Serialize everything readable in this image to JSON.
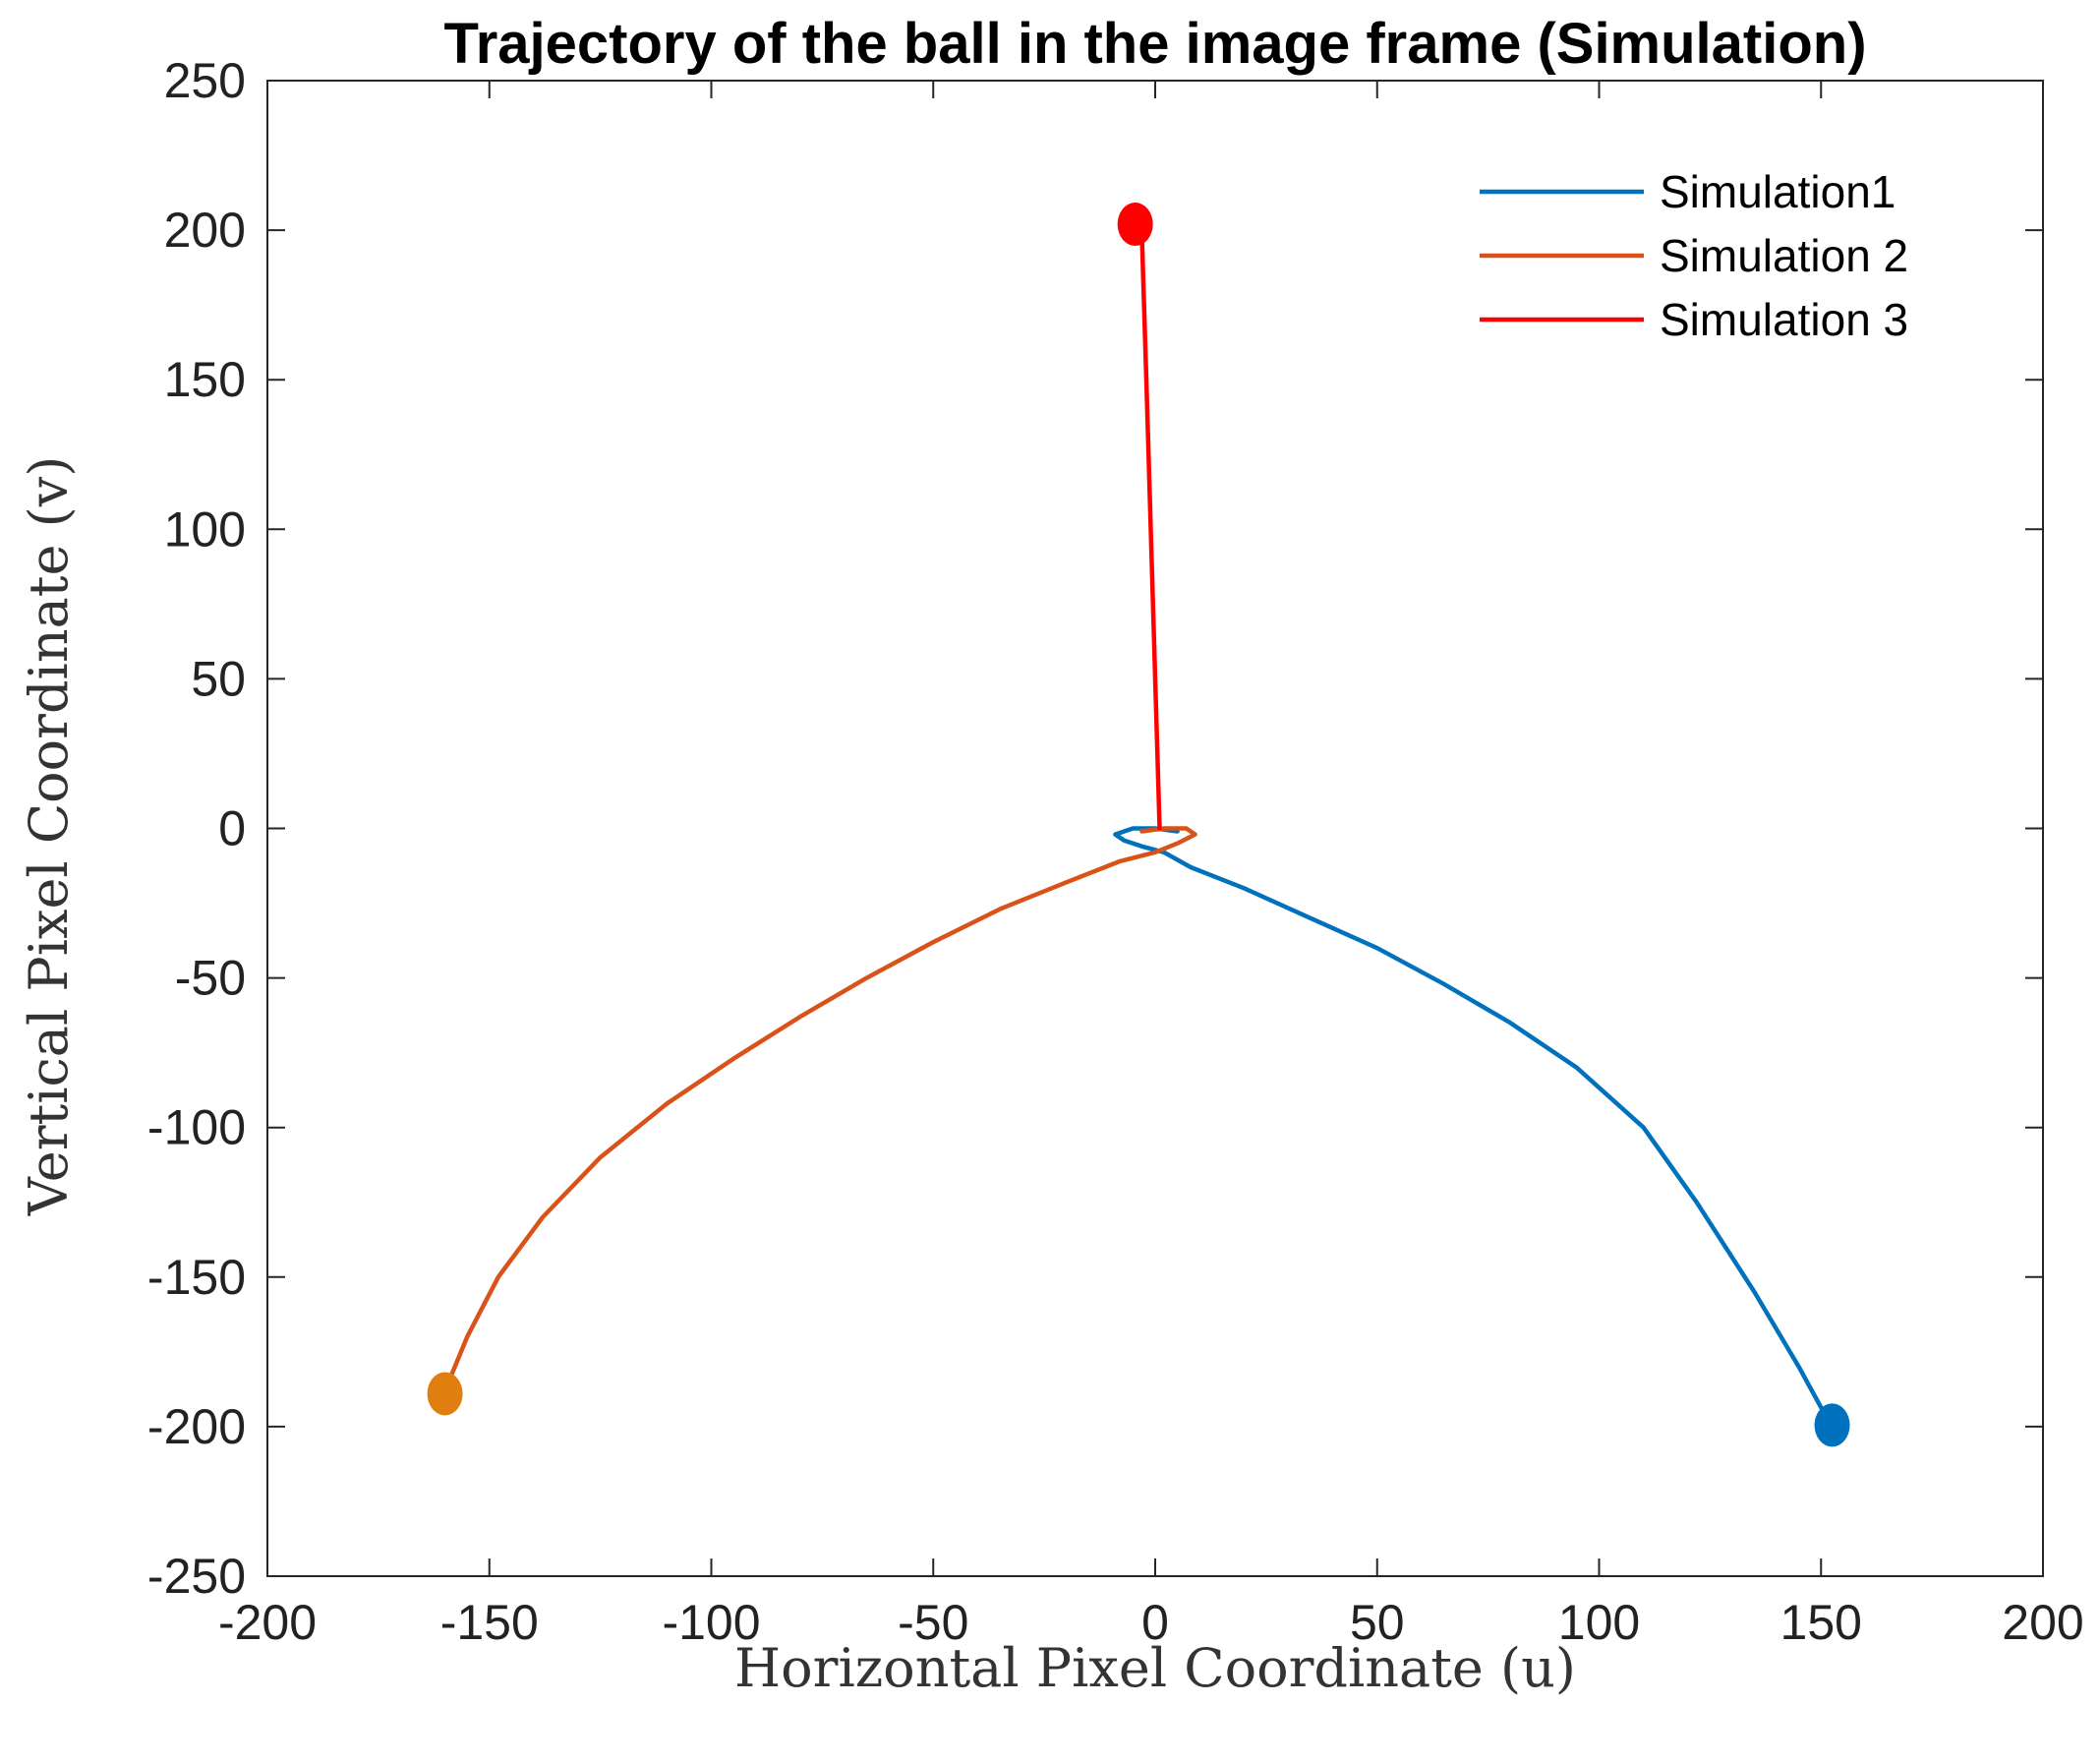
{
  "chart_data": {
    "type": "line",
    "title": "Trajectory of the ball in the image frame (Simulation)",
    "xlabel": "Horizontal Pixel Coordinate (u)",
    "ylabel": "Vertical Pixel Coordinate (v)",
    "xlim": [
      -200,
      200
    ],
    "ylim": [
      -250,
      250
    ],
    "xticks": [
      -200,
      -150,
      -100,
      -50,
      0,
      50,
      100,
      150,
      200
    ],
    "yticks": [
      -250,
      -200,
      -150,
      -100,
      -50,
      0,
      50,
      100,
      150,
      200,
      250
    ],
    "grid": false,
    "legend_position": "top-right",
    "series": [
      {
        "name": "Simulation1",
        "color": "#0072BD",
        "x": [
          152,
          145,
          135,
          122,
          110,
          95,
          80,
          65,
          50,
          35,
          20,
          8,
          2,
          -3,
          -7,
          -9,
          -5,
          0,
          5
        ],
        "y": [
          -199,
          -180,
          -155,
          -125,
          -100,
          -80,
          -65,
          -52,
          -40,
          -30,
          -20,
          -13,
          -8,
          -6,
          -4,
          -2,
          0,
          0,
          -1
        ],
        "end_marker": [
          152.5,
          -199.5
        ]
      },
      {
        "name": "Simulation 2",
        "color": "#D95319",
        "x": [
          -160,
          -155,
          -148,
          -138,
          -125,
          -110,
          -95,
          -80,
          -65,
          -50,
          -35,
          -20,
          -8,
          0,
          5,
          9,
          7,
          2,
          -3
        ],
        "y": [
          -188,
          -170,
          -150,
          -130,
          -110,
          -92,
          -77,
          -63,
          -50,
          -38,
          -27,
          -18,
          -11,
          -8,
          -5,
          -2,
          0,
          0,
          -1
        ],
        "end_marker": [
          -160,
          -189
        ]
      },
      {
        "name": "Simulation 3",
        "color": "#FF0000",
        "x": [
          -3,
          -2,
          -1,
          0,
          1
        ],
        "y": [
          198,
          150,
          100,
          50,
          0
        ],
        "end_marker": [
          -4.5,
          202
        ]
      }
    ],
    "end_marker_colors": [
      "#0072BD",
      "#E07E10",
      "#FF0000"
    ]
  }
}
